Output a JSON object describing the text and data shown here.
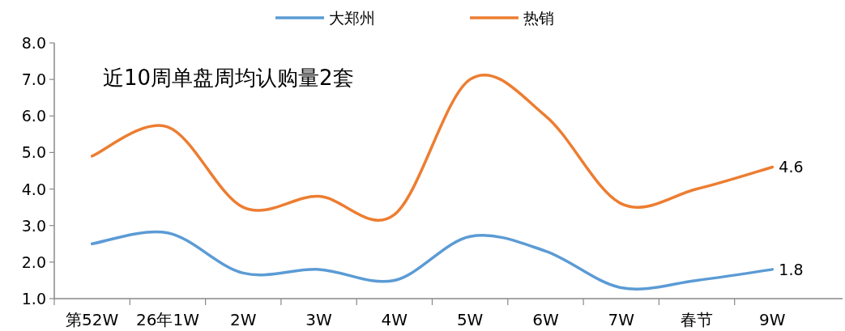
{
  "chart_data": {
    "type": "line",
    "title": "近10周单盘周均认购量2套",
    "categories": [
      "第52W",
      "26年1W",
      "2W",
      "3W",
      "4W",
      "5W",
      "6W",
      "7W",
      "春节",
      "9W"
    ],
    "series": [
      {
        "name": "大郑州",
        "color": "#5b9bd5",
        "values": [
          2.5,
          2.8,
          1.7,
          1.8,
          1.5,
          2.7,
          2.3,
          1.3,
          1.5,
          1.8
        ],
        "value_labels": [
          null,
          null,
          null,
          null,
          null,
          null,
          null,
          null,
          null,
          "1.8"
        ]
      },
      {
        "name": "热销",
        "color": "#ed7d31",
        "values": [
          4.9,
          5.7,
          3.5,
          3.8,
          3.3,
          7.0,
          6.0,
          3.6,
          4.0,
          4.6
        ],
        "value_labels": [
          null,
          null,
          null,
          null,
          null,
          null,
          null,
          null,
          null,
          "4.6"
        ]
      }
    ],
    "ylim": [
      1,
      8
    ],
    "yticks": [
      {
        "value": 1,
        "label": "1.0"
      },
      {
        "value": 2,
        "label": "2.0"
      },
      {
        "value": 3,
        "label": "3.0"
      },
      {
        "value": 4,
        "label": "4.0"
      },
      {
        "value": 5,
        "label": "5.0"
      },
      {
        "value": 6,
        "label": "6.0"
      },
      {
        "value": 7,
        "label": "7.0"
      },
      {
        "value": 8,
        "label": "8.0"
      }
    ],
    "legend": "top",
    "grid": false,
    "marker": "none",
    "line_style": "solid"
  }
}
